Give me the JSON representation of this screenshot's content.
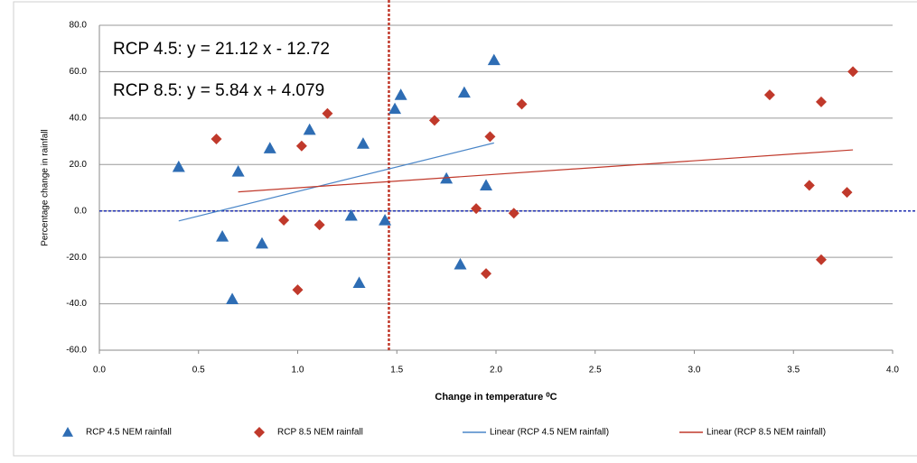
{
  "chart_data": {
    "type": "scatter",
    "xlabel": "Change in temperature ⁰C",
    "ylabel": "Percentage change in rainfall",
    "annotations": [
      "RCP 4.5: y = 21.12 x - 12.72",
      "RCP 8.5: y = 5.84 x + 4.079"
    ],
    "xlim": [
      0,
      4
    ],
    "ylim": [
      -60,
      80
    ],
    "xticks": [
      {
        "value": 0,
        "label": "0.0"
      },
      0.5,
      {
        "value": 1,
        "label": "1.0"
      },
      1.5,
      {
        "value": 2,
        "label": "2.0"
      },
      2.5,
      {
        "value": 3,
        "label": "3.0"
      },
      3.5,
      {
        "value": 4,
        "label": "4.0"
      }
    ],
    "yticks": [
      {
        "value": 80,
        "label": "80.0"
      },
      {
        "value": 60,
        "label": "60.0"
      },
      {
        "value": 40,
        "label": "40.0"
      },
      {
        "value": 20,
        "label": "20.0"
      },
      {
        "value": 0,
        "label": "0.0"
      },
      {
        "value": -20,
        "label": "-20.0"
      },
      {
        "value": -40,
        "label": "-40.0"
      },
      {
        "value": -60,
        "label": "-60.0"
      }
    ],
    "grid": true,
    "vline": 1.46,
    "vline_color": "#c0392b",
    "hline": 0,
    "hline_color": "#1f2fb0",
    "series": [
      {
        "name": "RCP 4.5 NEM rainfall",
        "marker": "triangle",
        "color": "#2e6db4",
        "x": [
          0.4,
          0.7,
          0.86,
          1.06,
          1.33,
          1.49,
          1.52,
          1.84,
          1.99,
          1.75,
          1.95,
          0.62,
          0.82,
          1.27,
          1.44,
          0.67,
          1.31,
          1.82
        ],
        "values": [
          19,
          17,
          27,
          35,
          29,
          44,
          50,
          51,
          65,
          14,
          11,
          -11,
          -14,
          -2,
          -4,
          -38,
          -31,
          -23
        ]
      },
      {
        "name": "RCP 8.5 NEM  rainfall",
        "marker": "diamond",
        "color": "#c0392b",
        "x": [
          0.59,
          1.15,
          1.02,
          1.69,
          1.97,
          2.13,
          0.93,
          1.11,
          1.0,
          1.9,
          2.09,
          1.95,
          3.38,
          3.64,
          3.8,
          3.58,
          3.77,
          3.64
        ],
        "values": [
          31,
          42,
          28,
          39,
          32,
          46,
          -4,
          -6,
          -34,
          1,
          -1,
          -27,
          50,
          47,
          60,
          11,
          8,
          -21
        ]
      },
      {
        "name": "Linear (RCP 4.5 NEM rainfall)",
        "marker": "line",
        "color": "#4a86c8",
        "x": [
          0.4,
          1.99
        ],
        "values": [
          -4.3,
          29.3
        ]
      },
      {
        "name": "Linear (RCP 8.5 NEM  rainfall)",
        "marker": "line",
        "color": "#c0392b",
        "x": [
          0.7,
          3.8
        ],
        "values": [
          8.2,
          26.3
        ]
      }
    ]
  }
}
